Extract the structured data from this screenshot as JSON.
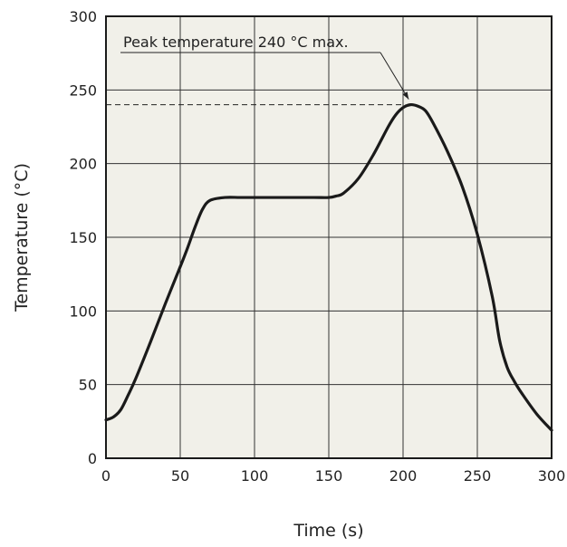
{
  "chart_data": {
    "type": "line",
    "title": "",
    "xlabel": "Time (s)",
    "ylabel": "Temperature (°C)",
    "xlim": [
      0,
      300
    ],
    "ylim": [
      0,
      300
    ],
    "x_ticks": [
      "0",
      "50",
      "100",
      "150",
      "200",
      "250",
      "300"
    ],
    "y_ticks": [
      "0",
      "50",
      "100",
      "150",
      "200",
      "250",
      "300"
    ],
    "grid": true,
    "series": [
      {
        "x": [
          0,
          5,
          10,
          15,
          20,
          30,
          40,
          50,
          55,
          60,
          65,
          70,
          80,
          90,
          100,
          120,
          140,
          150,
          155,
          160,
          170,
          180,
          190,
          195,
          200,
          205,
          210,
          215,
          220,
          230,
          240,
          250,
          260,
          265,
          270,
          275,
          280,
          290,
          300
        ],
        "values": [
          26,
          28,
          33,
          43,
          54,
          79,
          105,
          130,
          143,
          157,
          169,
          175,
          177,
          177,
          177,
          177,
          177,
          177,
          178,
          180,
          190,
          206,
          225,
          233,
          238,
          240,
          239,
          236,
          228,
          208,
          184,
          152,
          110,
          80,
          62,
          52,
          44,
          30,
          19
        ]
      }
    ],
    "annotations": [
      {
        "text": "Peak temperature 240 °C max.",
        "x": 205,
        "y": 240
      }
    ],
    "reference_lines": [
      {
        "orientation": "horizontal",
        "y": 240,
        "x_from": 0,
        "x_to": 205,
        "style": "dashed"
      }
    ],
    "colors": {
      "plot_background": "#f1f0e9",
      "line": "#1a1a1a",
      "grid": "#333333"
    }
  }
}
